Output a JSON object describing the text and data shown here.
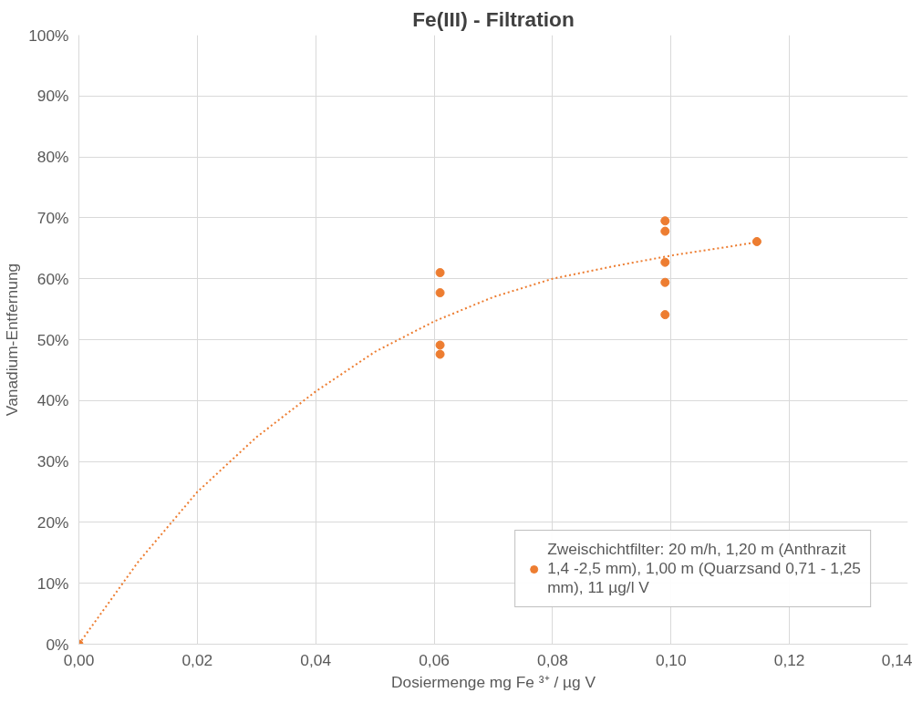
{
  "chart_data": {
    "type": "scatter",
    "title": "Fe(III) - Filtration",
    "xlabel": "Dosiermenge mg Fe ³⁺ / µg V",
    "ylabel": "Vanadium-Entfernung",
    "xlim": [
      0,
      0.14
    ],
    "xticks": [
      {
        "value": 0,
        "label": "0,00"
      },
      {
        "value": 0.02,
        "label": "0,02"
      },
      {
        "value": 0.04,
        "label": "0,04"
      },
      {
        "value": 0.06,
        "label": "0,06"
      },
      {
        "value": 0.08,
        "label": "0,08"
      },
      {
        "value": 0.1,
        "label": "0,10"
      },
      {
        "value": 0.12,
        "label": "0,12"
      },
      {
        "value": 0.14,
        "label": "0,14"
      }
    ],
    "ylim": [
      0,
      100
    ],
    "yticks": [
      {
        "value": 0,
        "label": "0%"
      },
      {
        "value": 10,
        "label": "10%"
      },
      {
        "value": 20,
        "label": "20%"
      },
      {
        "value": 30,
        "label": "30%"
      },
      {
        "value": 40,
        "label": "40%"
      },
      {
        "value": 50,
        "label": "50%"
      },
      {
        "value": 60,
        "label": "60%"
      },
      {
        "value": 70,
        "label": "70%"
      },
      {
        "value": 80,
        "label": "80%"
      },
      {
        "value": 90,
        "label": "90%"
      },
      {
        "value": 100,
        "label": "100%"
      }
    ],
    "grid": true,
    "legend": "bottom right",
    "marker": "circle",
    "series": [
      {
        "name": "Zweischichtfilter: 20 m/h, 1,20 m (Anthrazit 1,4 -2,5 mm), 1,00 m (Quarzsand 0,71 - 1,25 mm), 11 µg/l V",
        "color": "#ed7d31",
        "x": [
          0,
          0.061,
          0.061,
          0.061,
          0.061,
          0.099,
          0.099,
          0.099,
          0.099,
          0.099,
          0.1145
        ],
        "values": [
          0,
          61.0,
          57.7,
          49.1,
          47.6,
          69.5,
          67.8,
          62.7,
          59.4,
          54.1,
          66.1
        ]
      },
      {
        "type": "line",
        "line_style": "dotted",
        "marker": "none",
        "color": "#ed7d31",
        "x": [
          0,
          0.01,
          0.02,
          0.03,
          0.04,
          0.05,
          0.06,
          0.07,
          0.08,
          0.09,
          0.1,
          0.11,
          0.1145
        ],
        "values": [
          0,
          13.5,
          25,
          34,
          41.5,
          48,
          53,
          57,
          60,
          62,
          63.8,
          65.3,
          66
        ]
      }
    ]
  }
}
